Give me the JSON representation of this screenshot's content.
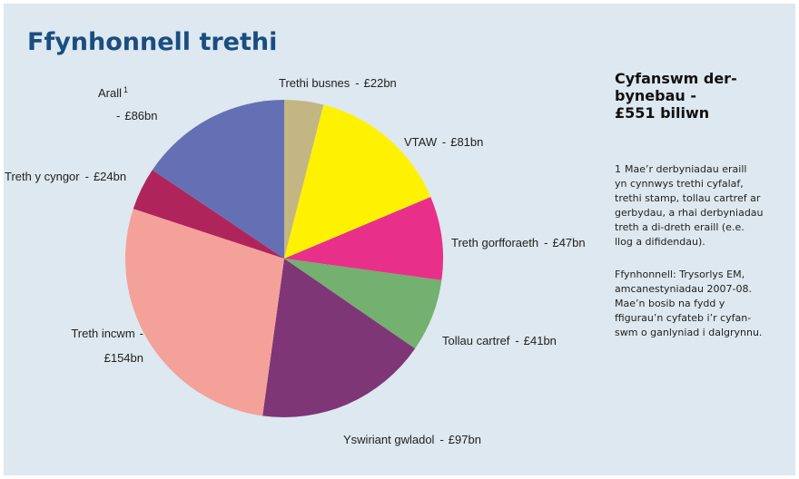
{
  "chart_data": {
    "type": "pie",
    "title": "Ffynhonnell trethi",
    "categories": [
      "Trethi busnes",
      "VTAW",
      "Treth gorfforaeth",
      "Tollau cartref",
      "Yswiriant gwladol",
      "Treth incwm",
      "Treth y cyngor",
      "Arall"
    ],
    "values": [
      22,
      81,
      47,
      41,
      97,
      154,
      24,
      86
    ],
    "value_labels": [
      "£22bn",
      "£81bn",
      "£47bn",
      "£41bn",
      "£97bn",
      "£154bn",
      "£24bn",
      "£86bn"
    ],
    "colors": [
      "#c4b683",
      "#fff200",
      "#e8308a",
      "#74b06f",
      "#7e3676",
      "#f4a19a",
      "#b0245c",
      "#6570b4"
    ],
    "label_separator": "-",
    "footnote_marker": "1",
    "total_heading": [
      "Cyfanswm der-",
      "bynebau -",
      "£551 biliwn"
    ],
    "footnote": [
      "Mae’r derbyniadau eraill",
      "yn cynnwys trethi cyfalaf,",
      "trethi stamp, tollau cartref ar",
      "gerbydau, a rhai derbyniadau",
      "treth a di-dreth eraill (e.e.",
      "llog a difidendau)."
    ],
    "source": [
      "Ffynhonnell: Trysorlys EM,",
      "amcanestyniadau 2007-08.",
      "Mae’n bosib na fydd y",
      "ffigurau’n cyfateb i’r cyfan-",
      "swm o ganlyniad i dalgrynnu."
    ]
  }
}
